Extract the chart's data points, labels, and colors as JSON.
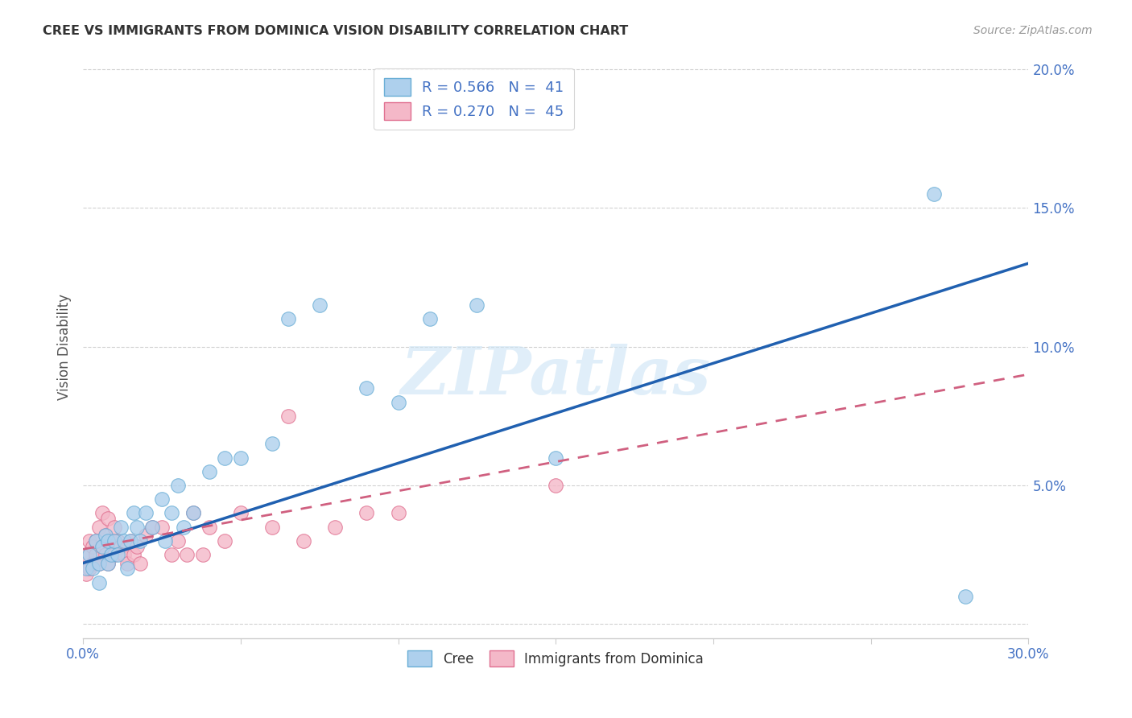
{
  "title": "CREE VS IMMIGRANTS FROM DOMINICA VISION DISABILITY CORRELATION CHART",
  "source": "Source: ZipAtlas.com",
  "ylabel": "Vision Disability",
  "watermark": "ZIPatlas",
  "xlim": [
    0.0,
    0.3
  ],
  "ylim": [
    -0.005,
    0.205
  ],
  "xticks": [
    0.0,
    0.05,
    0.1,
    0.15,
    0.2,
    0.25,
    0.3
  ],
  "yticks": [
    0.0,
    0.05,
    0.1,
    0.15,
    0.2
  ],
  "cree_color_edge": "#6aaed6",
  "cree_color_fill": "#aed0ed",
  "dominica_color_edge": "#e07090",
  "dominica_color_fill": "#f4b8c8",
  "trend_cree_color": "#2060b0",
  "trend_dominica_color": "#d06080",
  "background_color": "#ffffff",
  "grid_color": "#cccccc",
  "axis_label_color": "#4472c4",
  "legend1_label1": "R = 0.566   N =  41",
  "legend1_label2": "R = 0.270   N =  45",
  "cree_trend_start_y": 0.022,
  "cree_trend_end_y": 0.13,
  "dominica_trend_start_y": 0.027,
  "dominica_trend_end_y": 0.09,
  "cree_x": [
    0.001,
    0.002,
    0.003,
    0.004,
    0.005,
    0.005,
    0.006,
    0.007,
    0.008,
    0.008,
    0.009,
    0.01,
    0.011,
    0.012,
    0.013,
    0.014,
    0.015,
    0.016,
    0.017,
    0.018,
    0.02,
    0.022,
    0.025,
    0.026,
    0.028,
    0.03,
    0.032,
    0.035,
    0.04,
    0.045,
    0.05,
    0.06,
    0.065,
    0.075,
    0.09,
    0.1,
    0.11,
    0.125,
    0.15,
    0.27,
    0.28
  ],
  "cree_y": [
    0.02,
    0.025,
    0.02,
    0.03,
    0.022,
    0.015,
    0.028,
    0.032,
    0.03,
    0.022,
    0.025,
    0.03,
    0.025,
    0.035,
    0.03,
    0.02,
    0.03,
    0.04,
    0.035,
    0.03,
    0.04,
    0.035,
    0.045,
    0.03,
    0.04,
    0.05,
    0.035,
    0.04,
    0.055,
    0.06,
    0.06,
    0.065,
    0.11,
    0.115,
    0.085,
    0.08,
    0.11,
    0.115,
    0.06,
    0.155,
    0.01
  ],
  "dominica_x": [
    0.001,
    0.001,
    0.002,
    0.002,
    0.003,
    0.003,
    0.004,
    0.004,
    0.005,
    0.005,
    0.006,
    0.006,
    0.007,
    0.007,
    0.008,
    0.008,
    0.009,
    0.01,
    0.01,
    0.011,
    0.012,
    0.013,
    0.014,
    0.015,
    0.016,
    0.017,
    0.018,
    0.02,
    0.022,
    0.025,
    0.028,
    0.03,
    0.033,
    0.035,
    0.038,
    0.04,
    0.045,
    0.05,
    0.06,
    0.065,
    0.07,
    0.08,
    0.09,
    0.1,
    0.15
  ],
  "dominica_y": [
    0.025,
    0.018,
    0.03,
    0.02,
    0.028,
    0.022,
    0.025,
    0.03,
    0.035,
    0.022,
    0.04,
    0.028,
    0.032,
    0.025,
    0.038,
    0.022,
    0.03,
    0.035,
    0.025,
    0.03,
    0.028,
    0.025,
    0.022,
    0.03,
    0.025,
    0.028,
    0.022,
    0.032,
    0.035,
    0.035,
    0.025,
    0.03,
    0.025,
    0.04,
    0.025,
    0.035,
    0.03,
    0.04,
    0.035,
    0.075,
    0.03,
    0.035,
    0.04,
    0.04,
    0.05
  ]
}
